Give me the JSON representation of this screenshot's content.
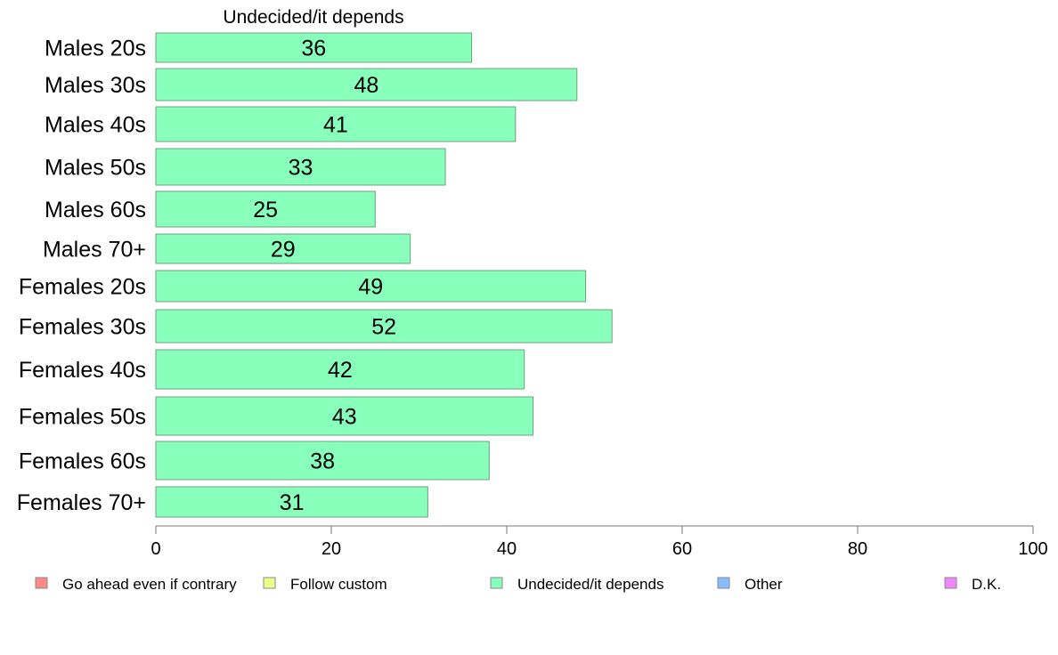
{
  "chart_data": {
    "type": "bar",
    "orientation": "horizontal",
    "title": "Undecided/it depends",
    "categories": [
      "Males 20s",
      "Males 30s",
      "Males 40s",
      "Males 50s",
      "Males 60s",
      "Males 70+",
      "Females 20s",
      "Females 30s",
      "Females 40s",
      "Females 50s",
      "Females 60s",
      "Females 70+"
    ],
    "values": [
      36,
      48,
      41,
      33,
      25,
      29,
      49,
      52,
      42,
      43,
      38,
      31
    ],
    "value_labels": [
      "36",
      "48",
      "41",
      "33",
      "25",
      "29",
      "49",
      "52",
      "42",
      "43",
      "38",
      "31"
    ],
    "xlim": [
      0,
      100
    ],
    "xticks": [
      0,
      20,
      40,
      60,
      80,
      100
    ],
    "xtick_labels": [
      "0",
      "20",
      "40",
      "60",
      "80",
      "100"
    ],
    "bar_color": "#88ffbb",
    "grid": false,
    "legend_position": "bottom",
    "legend": [
      {
        "label": "Go ahead even if contrary",
        "color": "#ff8888"
      },
      {
        "label": "Follow custom",
        "color": "#eeff88"
      },
      {
        "label": "Undecided/it depends",
        "color": "#88ffbb"
      },
      {
        "label": "Other",
        "color": "#88bbff"
      },
      {
        "label": "D.K.",
        "color": "#ee88ff"
      }
    ]
  }
}
